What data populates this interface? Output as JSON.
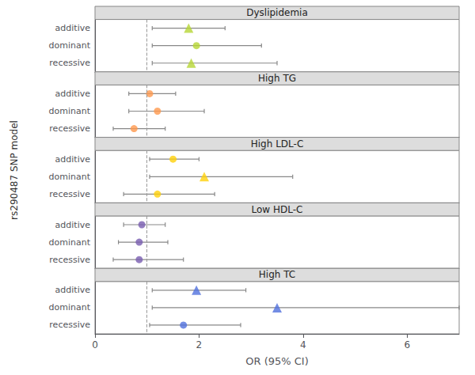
{
  "chart_data": {
    "type": "forest",
    "panels": [
      {
        "title": "Dyslipidemia",
        "categories": [
          "additive",
          "dominant",
          "recessive"
        ],
        "values": [
          1.8,
          1.95,
          1.85
        ],
        "ci_lo": [
          1.1,
          1.1,
          1.1
        ],
        "ci_hi": [
          2.5,
          3.2,
          3.5
        ],
        "markers": [
          "triangle",
          "circle",
          "triangle"
        ]
      },
      {
        "title": "High TG",
        "categories": [
          "additive",
          "dominant",
          "recessive"
        ],
        "values": [
          1.05,
          1.2,
          0.75
        ],
        "ci_lo": [
          0.65,
          0.65,
          0.35
        ],
        "ci_hi": [
          1.55,
          2.1,
          1.35
        ],
        "markers": [
          "circle",
          "circle",
          "circle"
        ]
      },
      {
        "title": "High LDL-C",
        "categories": [
          "additive",
          "dominant",
          "recessive"
        ],
        "values": [
          1.5,
          2.1,
          1.2
        ],
        "ci_lo": [
          1.05,
          1.05,
          0.55
        ],
        "ci_hi": [
          2.0,
          3.8,
          2.3
        ],
        "markers": [
          "circle",
          "triangle",
          "circle"
        ]
      },
      {
        "title": "Low HDL-C",
        "categories": [
          "additive",
          "dominant",
          "recessive"
        ],
        "values": [
          0.9,
          0.85,
          0.85
        ],
        "ci_lo": [
          0.55,
          0.45,
          0.35
        ],
        "ci_hi": [
          1.35,
          1.4,
          1.7
        ],
        "markers": [
          "circle",
          "circle",
          "circle"
        ]
      },
      {
        "title": "High TC",
        "categories": [
          "additive",
          "dominant",
          "recessive"
        ],
        "values": [
          1.95,
          3.5,
          1.7
        ],
        "ci_lo": [
          1.1,
          1.1,
          1.05
        ],
        "ci_hi": [
          2.9,
          7.0,
          2.8
        ],
        "markers": [
          "triangle",
          "triangle",
          "circle"
        ]
      }
    ],
    "xlim": [
      0,
      7
    ],
    "xticks": [
      0,
      2,
      4,
      6
    ],
    "xlabel": "OR (95% CI)",
    "ylabel": "rs290487 SNP model",
    "ref_line": 1,
    "grid": false
  }
}
